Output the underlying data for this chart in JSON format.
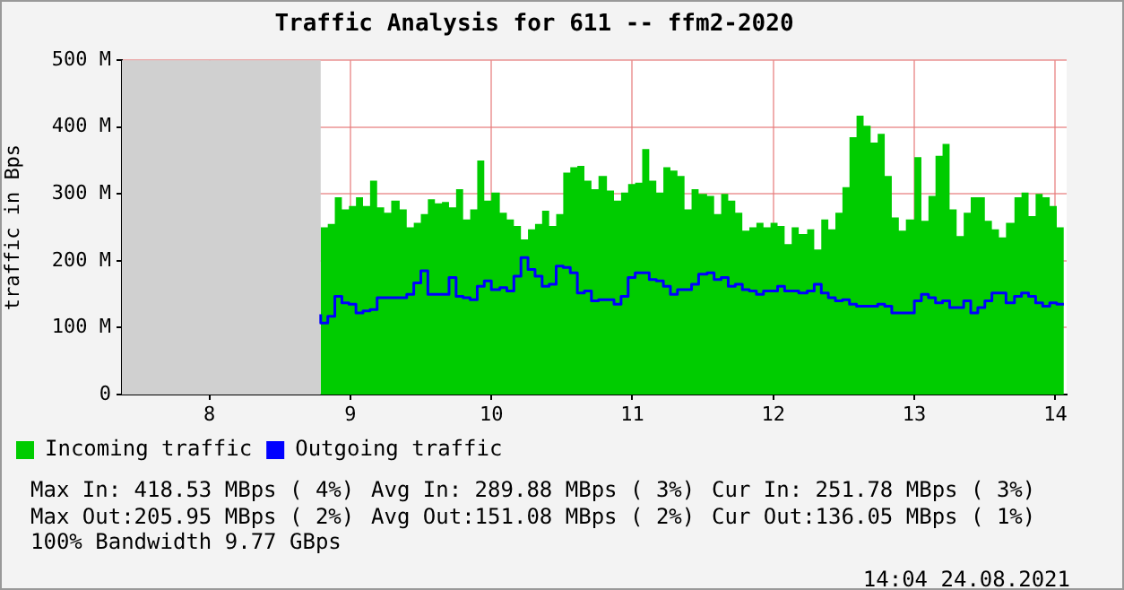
{
  "chart_data": {
    "type": "area",
    "title": "Traffic Analysis for 611 -- ffm2-2020",
    "ylabel": "traffic in Bps",
    "x": [
      8.79,
      8.84,
      8.89,
      8.94,
      8.99,
      9.04,
      9.09,
      9.14,
      9.19,
      9.24,
      9.29,
      9.35,
      9.4,
      9.45,
      9.5,
      9.55,
      9.6,
      9.65,
      9.7,
      9.75,
      9.8,
      9.85,
      9.9,
      9.95,
      10.0,
      10.06,
      10.11,
      10.16,
      10.21,
      10.26,
      10.31,
      10.36,
      10.41,
      10.46,
      10.51,
      10.56,
      10.61,
      10.66,
      10.71,
      10.76,
      10.82,
      10.87,
      10.92,
      10.97,
      11.02,
      11.07,
      11.12,
      11.17,
      11.22,
      11.27,
      11.32,
      11.37,
      11.42,
      11.47,
      11.53,
      11.58,
      11.63,
      11.68,
      11.73,
      11.78,
      11.83,
      11.88,
      11.93,
      11.98,
      12.03,
      12.08,
      12.13,
      12.18,
      12.24,
      12.29,
      12.34,
      12.39,
      12.44,
      12.49,
      12.54,
      12.59,
      12.64,
      12.69,
      12.74,
      12.79,
      12.84,
      12.89,
      12.94,
      13.0,
      13.05,
      13.1,
      13.15,
      13.2,
      13.25,
      13.3,
      13.35,
      13.4,
      13.45,
      13.5,
      13.55,
      13.6,
      13.65,
      13.71,
      13.76,
      13.81,
      13.86,
      13.91,
      13.96,
      14.01,
      14.06
    ],
    "series": [
      {
        "name": "Incoming traffic",
        "type": "area",
        "color": "#00cc00",
        "values": [
          273,
          250,
          255,
          295,
          277,
          282,
          295,
          282,
          320,
          280,
          272,
          290,
          277,
          250,
          257,
          270,
          292,
          286,
          288,
          280,
          307,
          262,
          277,
          350,
          290,
          302,
          272,
          262,
          252,
          232,
          247,
          255,
          275,
          252,
          270,
          332,
          340,
          342,
          320,
          307,
          327,
          305,
          290,
          302,
          315,
          317,
          367,
          320,
          302,
          340,
          335,
          327,
          277,
          307,
          300,
          297,
          270,
          300,
          290,
          272,
          245,
          250,
          257,
          250,
          257,
          252,
          225,
          250,
          240,
          247,
          217,
          262,
          247,
          272,
          310,
          385,
          417,
          402,
          377,
          390,
          327,
          265,
          245,
          262,
          355,
          260,
          297,
          357,
          375,
          277,
          237,
          272,
          295,
          295,
          260,
          247,
          235,
          257,
          295,
          302,
          267,
          300,
          295,
          282,
          250
        ]
      },
      {
        "name": "Outgoing traffic",
        "type": "step",
        "color": "#0000ff",
        "values": [
          120,
          107,
          117,
          147,
          137,
          135,
          122,
          125,
          127,
          145,
          145,
          145,
          145,
          150,
          167,
          185,
          150,
          150,
          150,
          175,
          147,
          145,
          142,
          162,
          170,
          157,
          160,
          155,
          177,
          205,
          187,
          177,
          162,
          165,
          192,
          190,
          182,
          152,
          155,
          140,
          142,
          142,
          135,
          147,
          175,
          182,
          182,
          172,
          170,
          162,
          150,
          157,
          157,
          165,
          180,
          182,
          172,
          175,
          162,
          165,
          157,
          155,
          150,
          155,
          155,
          162,
          155,
          155,
          152,
          155,
          165,
          152,
          145,
          140,
          142,
          135,
          132,
          132,
          132,
          135,
          132,
          122,
          122,
          122,
          140,
          150,
          145,
          137,
          140,
          130,
          130,
          140,
          122,
          130,
          140,
          152,
          152,
          137,
          147,
          152,
          147,
          137,
          132,
          137,
          135
        ]
      }
    ],
    "xlim": [
      7.38,
      14.08
    ],
    "xticks": [
      8,
      9,
      10,
      11,
      12,
      13,
      14
    ],
    "ylim": [
      0,
      500
    ],
    "yticks": [
      0,
      {
        "value": 100,
        "label": "100 M"
      },
      {
        "value": 200,
        "label": "200 M"
      },
      {
        "value": 300,
        "label": "300 M"
      },
      {
        "value": 400,
        "label": "400 M"
      },
      {
        "value": 500,
        "label": "500 M"
      }
    ],
    "bands": [
      {
        "axis": "x",
        "from": 7.38,
        "to": 8.79,
        "color": "#d0d0d0"
      }
    ],
    "grid": true,
    "legend": "bottom",
    "marker": "none",
    "line_style": "solid",
    "annotations": [
      "Max In: 418.53 MBps ( 4%)",
      "Avg In: 289.88 MBps ( 3%)",
      "Cur In: 251.78 MBps ( 3%)",
      "Max Out:205.95 MBps ( 2%)",
      "Avg Out:151.08 MBps ( 2%)",
      "Cur Out:136.05 MBps ( 1%)",
      "100% Bandwidth 9.77 GBps",
      "14:04 24.08.2021"
    ]
  }
}
